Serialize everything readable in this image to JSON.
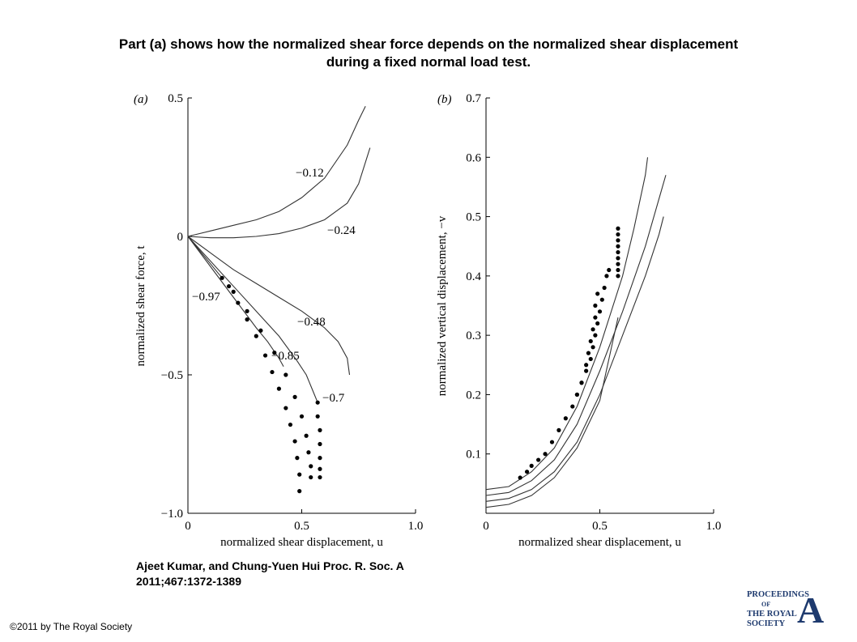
{
  "title": {
    "line1": "Part (a) shows how the normalized shear force depends on the normalized shear displacement",
    "line2": "during a fixed normal load test."
  },
  "chart_data": [
    {
      "panel": "(a)",
      "type": "line",
      "xlabel": "normalized shear displacement, u",
      "ylabel": "normalized shear force, t",
      "xlim": [
        0,
        1.0
      ],
      "ylim": [
        -1.0,
        0.5
      ],
      "xticks": [
        "0",
        "0.5",
        "1.0"
      ],
      "yticks": [
        "−1.0",
        "−0.5",
        "0",
        "0.5"
      ],
      "series": [
        {
          "name": "−0.12",
          "style": "line",
          "x": [
            0,
            0.1,
            0.2,
            0.3,
            0.4,
            0.5,
            0.6,
            0.7,
            0.75,
            0.78
          ],
          "y": [
            0,
            0.02,
            0.04,
            0.06,
            0.09,
            0.14,
            0.21,
            0.33,
            0.42,
            0.47
          ]
        },
        {
          "name": "−0.24",
          "style": "line",
          "x": [
            0,
            0.1,
            0.2,
            0.3,
            0.4,
            0.5,
            0.6,
            0.7,
            0.75,
            0.8
          ],
          "y": [
            0,
            -0.005,
            -0.005,
            0.0,
            0.01,
            0.03,
            0.06,
            0.12,
            0.19,
            0.32
          ]
        },
        {
          "name": "−0.48",
          "style": "line",
          "x": [
            0,
            0.1,
            0.2,
            0.3,
            0.4,
            0.5,
            0.6,
            0.66,
            0.7,
            0.71
          ],
          "y": [
            0,
            -0.06,
            -0.12,
            -0.17,
            -0.22,
            -0.27,
            -0.33,
            -0.38,
            -0.44,
            -0.5
          ]
        },
        {
          "name": "−0.7",
          "style": "line",
          "x": [
            0,
            0.1,
            0.2,
            0.3,
            0.4,
            0.48,
            0.52,
            0.55,
            0.57
          ],
          "y": [
            0,
            -0.09,
            -0.18,
            -0.27,
            -0.36,
            -0.45,
            -0.5,
            -0.56,
            -0.6
          ]
        },
        {
          "name": "−0.85",
          "style": "line",
          "x": [
            0,
            0.1,
            0.2,
            0.3,
            0.35,
            0.4,
            0.42
          ],
          "y": [
            0,
            -0.11,
            -0.22,
            -0.33,
            -0.38,
            -0.44,
            -0.47
          ]
        },
        {
          "name": "−0.97",
          "style": "line",
          "x": [
            0,
            0.05,
            0.1,
            0.15
          ],
          "y": [
            0,
            -0.05,
            -0.1,
            -0.15
          ]
        },
        {
          "style": "dots",
          "x": [
            0.15,
            0.18,
            0.22,
            0.26,
            0.3,
            0.34,
            0.37,
            0.4,
            0.43,
            0.45,
            0.47,
            0.48,
            0.49,
            0.49
          ],
          "y": [
            -0.15,
            -0.18,
            -0.24,
            -0.3,
            -0.36,
            -0.43,
            -0.49,
            -0.55,
            -0.62,
            -0.68,
            -0.74,
            -0.8,
            -0.86,
            -0.92
          ]
        },
        {
          "style": "dots",
          "x": [
            0.2,
            0.26,
            0.32,
            0.38,
            0.43,
            0.47,
            0.5,
            0.52,
            0.53,
            0.54,
            0.54
          ],
          "y": [
            -0.2,
            -0.27,
            -0.34,
            -0.42,
            -0.5,
            -0.58,
            -0.65,
            -0.72,
            -0.78,
            -0.83,
            -0.87
          ]
        },
        {
          "style": "dots",
          "x": [
            0.57,
            0.57,
            0.58,
            0.58,
            0.58,
            0.58,
            0.58
          ],
          "y": [
            -0.6,
            -0.65,
            -0.7,
            -0.75,
            -0.8,
            -0.84,
            -0.87
          ]
        }
      ]
    },
    {
      "panel": "(b)",
      "type": "line",
      "xlabel": "normalized shear displacement, u",
      "ylabel": "normalized vertical displacement, −v",
      "xlim": [
        0,
        1.0
      ],
      "ylim": [
        0,
        0.7
      ],
      "xticks": [
        "0",
        "0.5",
        "1.0"
      ],
      "yticks": [
        "0.1",
        "0.2",
        "0.3",
        "0.4",
        "0.5",
        "0.6",
        "0.7"
      ],
      "series": [
        {
          "style": "line",
          "x": [
            0,
            0.1,
            0.2,
            0.3,
            0.4,
            0.5,
            0.6,
            0.65,
            0.7,
            0.71
          ],
          "y": [
            0.04,
            0.045,
            0.07,
            0.11,
            0.18,
            0.28,
            0.4,
            0.48,
            0.57,
            0.6
          ]
        },
        {
          "style": "line",
          "x": [
            0,
            0.1,
            0.2,
            0.3,
            0.4,
            0.5,
            0.6,
            0.7,
            0.76,
            0.79
          ],
          "y": [
            0.03,
            0.035,
            0.055,
            0.09,
            0.15,
            0.24,
            0.34,
            0.45,
            0.53,
            0.57
          ]
        },
        {
          "style": "line",
          "x": [
            0,
            0.1,
            0.2,
            0.3,
            0.4,
            0.5,
            0.6,
            0.7,
            0.76,
            0.78
          ],
          "y": [
            0.02,
            0.025,
            0.04,
            0.07,
            0.12,
            0.2,
            0.3,
            0.4,
            0.47,
            0.5
          ]
        },
        {
          "style": "line",
          "x": [
            0,
            0.1,
            0.2,
            0.3,
            0.4,
            0.5,
            0.58
          ],
          "y": [
            0.01,
            0.015,
            0.03,
            0.06,
            0.11,
            0.19,
            0.33
          ]
        },
        {
          "style": "dots",
          "x": [
            0.15,
            0.18,
            0.2,
            0.23,
            0.26,
            0.29,
            0.32,
            0.35,
            0.38,
            0.4,
            0.42,
            0.44,
            0.46,
            0.47,
            0.48,
            0.49,
            0.5,
            0.51,
            0.52,
            0.53,
            0.54
          ],
          "y": [
            0.06,
            0.07,
            0.08,
            0.09,
            0.1,
            0.12,
            0.14,
            0.16,
            0.18,
            0.2,
            0.22,
            0.24,
            0.26,
            0.28,
            0.3,
            0.32,
            0.34,
            0.36,
            0.38,
            0.4,
            0.41
          ]
        },
        {
          "style": "dots",
          "x": [
            0.4,
            0.42,
            0.44,
            0.45,
            0.46,
            0.47,
            0.48,
            0.48,
            0.49
          ],
          "y": [
            0.2,
            0.22,
            0.25,
            0.27,
            0.29,
            0.31,
            0.33,
            0.35,
            0.37
          ]
        },
        {
          "style": "dots",
          "x": [
            0.58,
            0.58,
            0.58,
            0.58,
            0.58,
            0.58,
            0.58,
            0.58,
            0.58
          ],
          "y": [
            0.4,
            0.41,
            0.42,
            0.43,
            0.44,
            0.45,
            0.46,
            0.47,
            0.48
          ]
        }
      ]
    }
  ],
  "citation": {
    "line1": "Ajeet Kumar, and Chung-Yuen Hui Proc. R. Soc. A",
    "line2": "2011;467:1372-1389"
  },
  "copyright": "©2011 by The Royal Society",
  "logo": {
    "line1": "PROCEEDINGS",
    "line2": "OF",
    "line3": "THE ROYAL",
    "line4": "SOCIETY",
    "letter": "A"
  }
}
